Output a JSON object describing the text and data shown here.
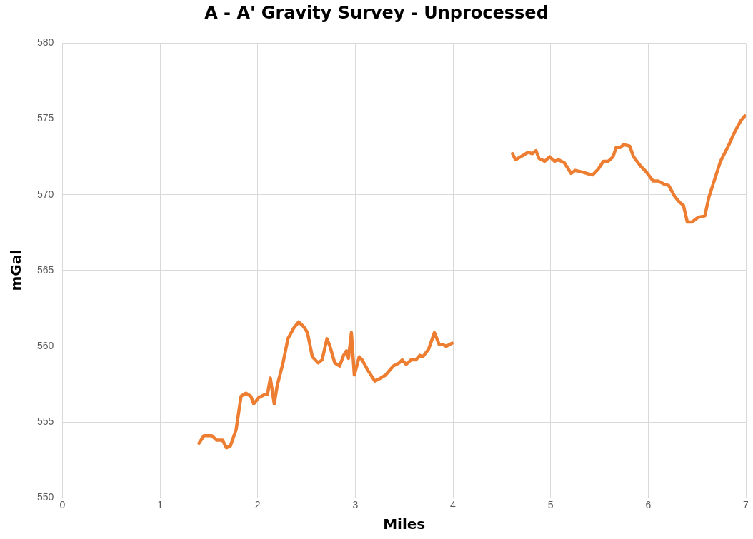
{
  "chart_data": {
    "type": "line",
    "title": "A - A' Gravity Survey - Unprocessed",
    "xlabel": "Miles",
    "ylabel": "mGal",
    "x": [
      1.4,
      1.45,
      1.53,
      1.58,
      1.64,
      1.68,
      1.72,
      1.78,
      1.83,
      1.88,
      1.93,
      1.96,
      2.01,
      2.07,
      2.1,
      2.13,
      2.17,
      2.2,
      2.26,
      2.31,
      2.37,
      2.42,
      2.47,
      2.51,
      2.56,
      2.62,
      2.66,
      2.71,
      2.74,
      2.79,
      2.84,
      2.88,
      2.91,
      2.93,
      2.96,
      2.99,
      3.04,
      3.07,
      3.13,
      3.2,
      3.26,
      3.31,
      3.39,
      3.45,
      3.48,
      3.52,
      3.57,
      3.62,
      3.66,
      3.69,
      3.75,
      3.81,
      3.86,
      3.9,
      3.93,
      3.99,
      4.3,
      4.61,
      4.64,
      4.72,
      4.77,
      4.81,
      4.85,
      4.88,
      4.94,
      4.99,
      5.04,
      5.08,
      5.14,
      5.21,
      5.25,
      5.32,
      5.37,
      5.43,
      5.49,
      5.54,
      5.59,
      5.64,
      5.67,
      5.71,
      5.75,
      5.81,
      5.85,
      5.92,
      5.98,
      6.05,
      6.1,
      6.16,
      6.21,
      6.27,
      6.32,
      6.36,
      6.4,
      6.45,
      6.51,
      6.58,
      6.62,
      6.67,
      6.74,
      6.82,
      6.89,
      6.95,
      6.99
    ],
    "series": [
      {
        "color": "#ed7d31",
        "values": [
          553.6,
          554.1,
          554.1,
          553.8,
          553.8,
          553.3,
          553.4,
          554.5,
          556.7,
          556.9,
          556.7,
          556.2,
          556.6,
          556.8,
          556.8,
          557.9,
          556.2,
          557.4,
          558.9,
          560.5,
          561.2,
          561.6,
          561.3,
          560.9,
          559.3,
          558.9,
          559.1,
          560.5,
          560.0,
          558.9,
          558.7,
          559.4,
          559.7,
          559.2,
          560.9,
          558.1,
          559.3,
          559.1,
          558.4,
          557.7,
          557.9,
          558.1,
          558.7,
          558.9,
          559.1,
          558.8,
          559.1,
          559.1,
          559.4,
          559.3,
          559.8,
          560.9,
          560.1,
          560.1,
          560.0,
          560.2,
          null,
          572.7,
          572.3,
          572.6,
          572.8,
          572.7,
          572.9,
          572.4,
          572.2,
          572.5,
          572.2,
          572.3,
          572.1,
          571.4,
          571.6,
          571.5,
          571.4,
          571.3,
          571.7,
          572.2,
          572.2,
          572.5,
          573.1,
          573.1,
          573.3,
          573.2,
          572.5,
          571.9,
          571.5,
          570.9,
          570.9,
          570.7,
          570.6,
          569.9,
          569.5,
          569.3,
          568.2,
          568.2,
          568.5,
          568.6,
          569.8,
          570.8,
          572.2,
          573.2,
          574.2,
          574.9,
          575.2
        ]
      }
    ],
    "xlim": [
      0,
      7
    ],
    "xticks": [
      0,
      1,
      2,
      3,
      4,
      5,
      6,
      7
    ],
    "ylim": [
      550,
      580
    ],
    "yticks": [
      550,
      555,
      560,
      565,
      570,
      575,
      580
    ],
    "grid": true,
    "legend": false,
    "marker": "none",
    "line_style": "solid"
  }
}
